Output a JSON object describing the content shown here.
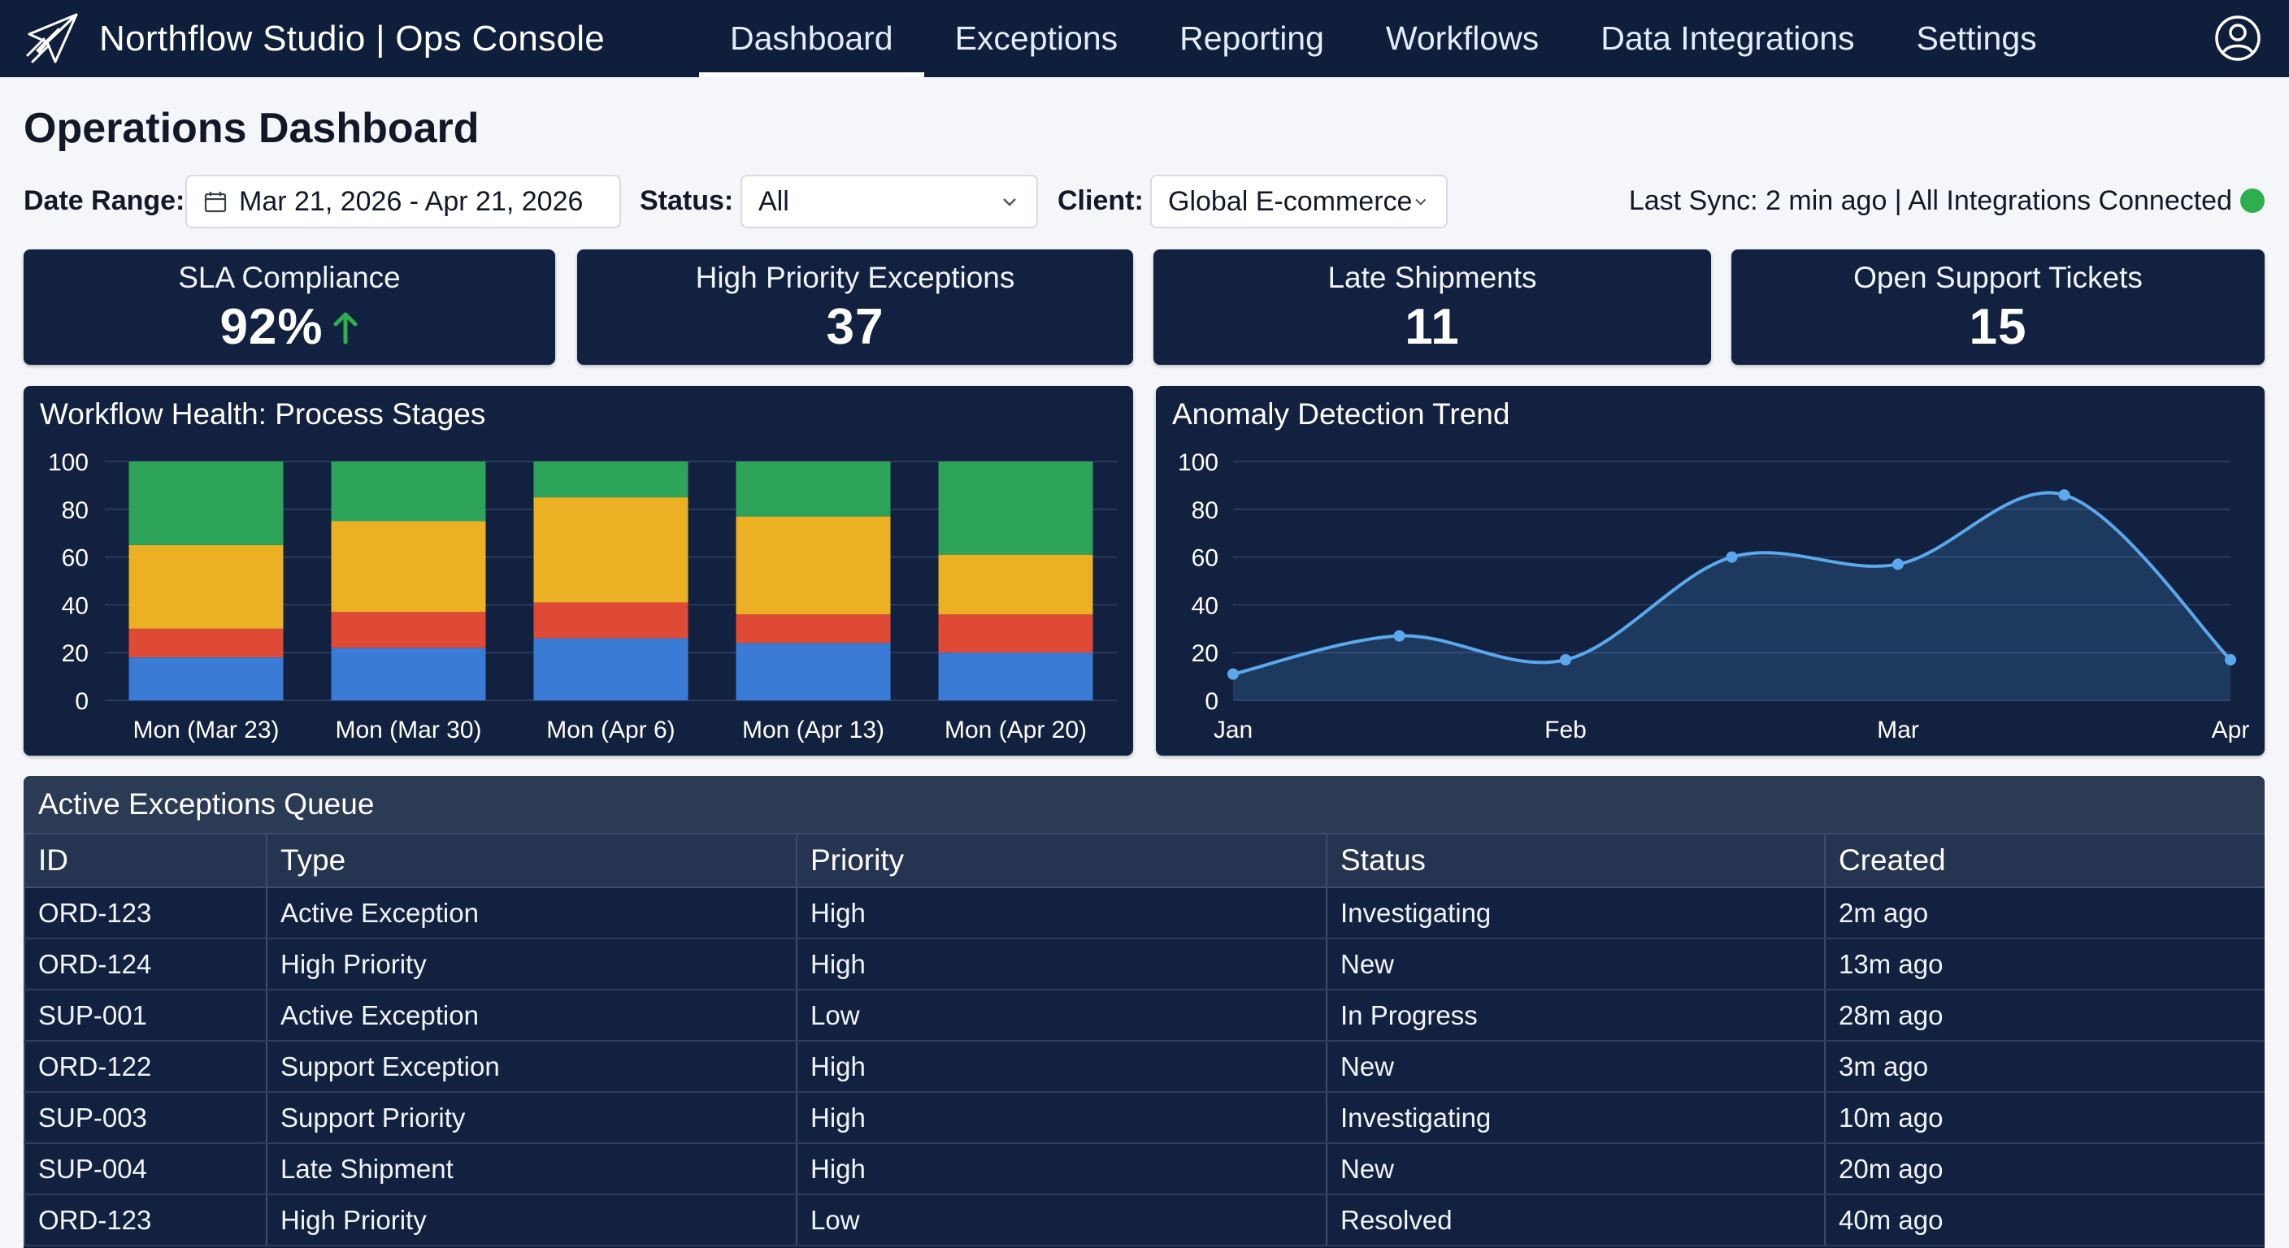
{
  "app": {
    "title": "Northflow Studio | Ops Console",
    "logo": "paper-plane-icon",
    "colors": {
      "nav_bg": "#0f1e3a",
      "panel_bg": "#12213f",
      "accent_green": "#2fae4f"
    }
  },
  "nav": {
    "items": [
      {
        "label": "Dashboard",
        "active": true
      },
      {
        "label": "Exceptions",
        "active": false
      },
      {
        "label": "Reporting",
        "active": false
      },
      {
        "label": "Workflows",
        "active": false
      },
      {
        "label": "Data Integrations",
        "active": false
      },
      {
        "label": "Settings",
        "active": false
      }
    ],
    "user_icon": "user-circle-icon"
  },
  "page": {
    "title": "Operations Dashboard"
  },
  "filters": {
    "date_range": {
      "label": "Date Range:",
      "value": "Mar 21, 2026 - Apr 21, 2026",
      "icon": "calendar-icon"
    },
    "status": {
      "label": "Status:",
      "value": "All"
    },
    "client": {
      "label": "Client:",
      "value": "Global E-commerce"
    }
  },
  "sync": {
    "text": "Last Sync: 2 min ago | All Integrations Connected",
    "status_color": "#2fae4f"
  },
  "kpis": [
    {
      "label": "SLA Compliance",
      "value": "92%",
      "trend": "up-arrow-icon",
      "trend_color": "#2fae4f"
    },
    {
      "label": "High Priority Exceptions",
      "value": "37"
    },
    {
      "label": "Late Shipments",
      "value": "11"
    },
    {
      "label": "Open Support Tickets",
      "value": "15"
    }
  ],
  "chart_data": [
    {
      "type": "bar",
      "stacked": true,
      "title": "Workflow Health: Process Stages",
      "categories": [
        "Mon (Mar 23)",
        "Mon (Mar 30)",
        "Mon (Apr 6)",
        "Mon (Apr 13)",
        "Mon (Apr 20)"
      ],
      "series": [
        {
          "color": "#3a7bd5",
          "values": [
            18,
            22,
            26,
            24,
            20
          ]
        },
        {
          "color": "#df4a36",
          "values": [
            12,
            15,
            15,
            12,
            16
          ]
        },
        {
          "color": "#ebb024",
          "values": [
            35,
            38,
            44,
            41,
            25
          ]
        },
        {
          "color": "#2ea35a",
          "values": [
            35,
            25,
            15,
            23,
            39
          ]
        }
      ],
      "ylim": [
        0,
        100
      ],
      "yticks": [
        0,
        20,
        40,
        60,
        80,
        100
      ],
      "grid": true
    },
    {
      "type": "area",
      "title": "Anomaly Detection Trend",
      "x_ticks": [
        "Jan",
        "Feb",
        "Mar",
        "Apr"
      ],
      "x": [
        0,
        0.5,
        1,
        1.5,
        2,
        2.5,
        3
      ],
      "values": [
        11,
        27,
        17,
        60,
        57,
        86,
        17
      ],
      "color": "#5ba8ec",
      "ylim": [
        0,
        100
      ],
      "yticks": [
        0,
        20,
        40,
        60,
        80,
        100
      ],
      "grid": true
    }
  ],
  "table": {
    "title": "Active Exceptions Queue",
    "columns": [
      "ID",
      "Type",
      "Priority",
      "Status",
      "Created"
    ],
    "rows": [
      [
        "ORD-123",
        "Active Exception",
        "High",
        "Investigating",
        "2m ago"
      ],
      [
        "ORD-124",
        "High Priority",
        "High",
        "New",
        "13m ago"
      ],
      [
        "SUP-001",
        "Active Exception",
        "Low",
        "In Progress",
        "28m ago"
      ],
      [
        "ORD-122",
        "Support Exception",
        "High",
        "New",
        "3m ago"
      ],
      [
        "SUP-003",
        "Support Priority",
        "High",
        "Investigating",
        "10m ago"
      ],
      [
        "SUP-004",
        "Late Shipment",
        "High",
        "New",
        "20m ago"
      ],
      [
        "ORD-123",
        "High Priority",
        "Low",
        "Resolved",
        "40m ago"
      ]
    ]
  }
}
